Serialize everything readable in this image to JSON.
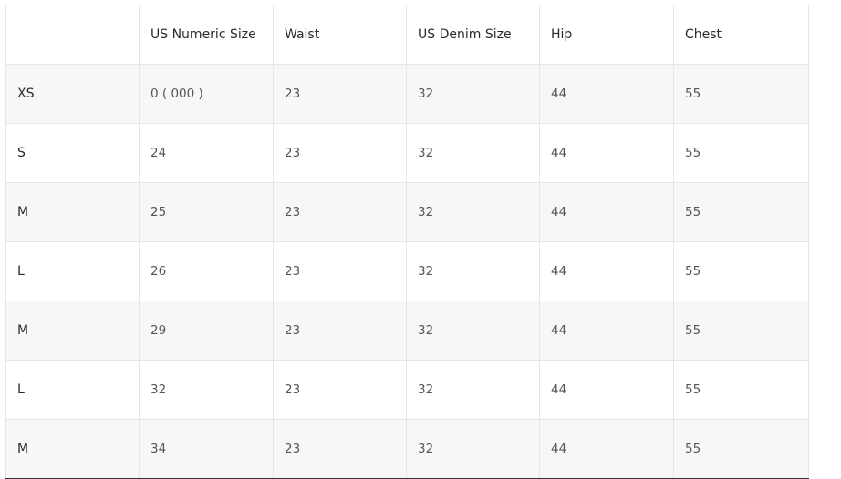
{
  "size_chart": {
    "headers": [
      "",
      "US Numeric Size",
      "Waist",
      "US Denim Size",
      "Hip",
      "Chest"
    ],
    "rows": [
      [
        "XS",
        "0 ( 000 )",
        "23",
        "32",
        "44",
        "55"
      ],
      [
        "S",
        "24",
        "23",
        "32",
        "44",
        "55"
      ],
      [
        "M",
        "25",
        "23",
        "32",
        "44",
        "55"
      ],
      [
        "L",
        "26",
        "23",
        "32",
        "44",
        "55"
      ],
      [
        "M",
        "29",
        "23",
        "32",
        "44",
        "55"
      ],
      [
        "L",
        "32",
        "23",
        "32",
        "44",
        "55"
      ],
      [
        "M",
        "34",
        "23",
        "32",
        "44",
        "55"
      ]
    ]
  }
}
